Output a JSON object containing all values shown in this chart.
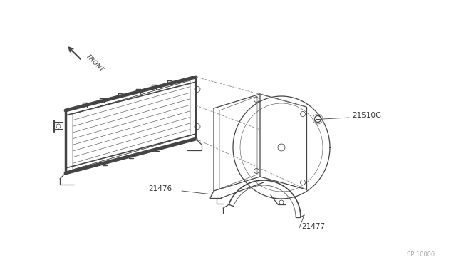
{
  "bg_color": "#ffffff",
  "line_color": "#444444",
  "label_color": "#333333",
  "watermark": "SP 10000",
  "figsize": [
    6.4,
    3.72
  ],
  "dpi": 100
}
